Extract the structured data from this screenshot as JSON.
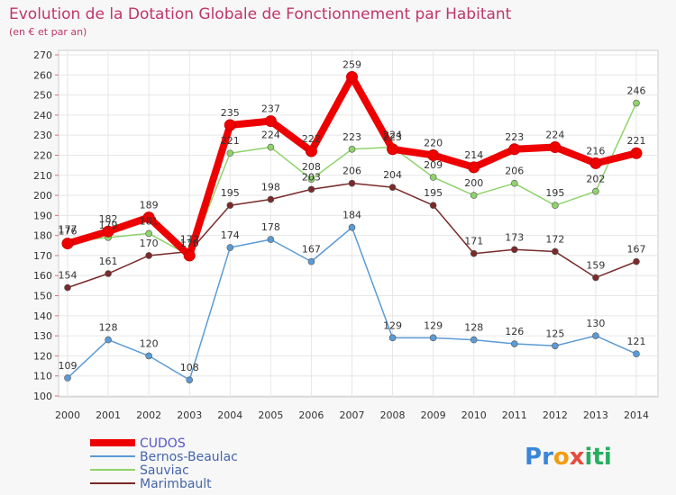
{
  "chart_data": {
    "type": "line",
    "title": "Evolution de la Dotation Globale de Fonctionnement par Habitant",
    "subtitle": "(en € et par an)",
    "xlabel": "",
    "ylabel": "",
    "ylim": [
      100,
      270
    ],
    "ytick_step": 10,
    "grid": true,
    "legend_position": "bottom-left",
    "x": [
      "2000",
      "2001",
      "2002",
      "2003",
      "2004",
      "2005",
      "2006",
      "2007",
      "2008",
      "2009",
      "2010",
      "2011",
      "2012",
      "2013",
      "2014"
    ],
    "series": [
      {
        "name": "CUDOS",
        "color": "#ee0000",
        "values": [
          176,
          182,
          189,
          170,
          235,
          237,
          222,
          259,
          223,
          220,
          214,
          223,
          224,
          216,
          221
        ]
      },
      {
        "name": "Bernos-Beaulac",
        "color": "#5b9bd5",
        "values": [
          109,
          128,
          120,
          108,
          174,
          178,
          167,
          184,
          129,
          129,
          128,
          126,
          125,
          130,
          121
        ]
      },
      {
        "name": "Sauviac",
        "color": "#8fd36b",
        "values": [
          177,
          179,
          181,
          170,
          221,
          224,
          208,
          223,
          224,
          209,
          200,
          206,
          195,
          202,
          246
        ]
      },
      {
        "name": "Marimbault",
        "color": "#7a2a2a",
        "values": [
          154,
          161,
          170,
          172,
          195,
          198,
          203,
          206,
          204,
          195,
          171,
          173,
          172,
          159,
          167
        ]
      }
    ],
    "brand": {
      "logo_text": "Proxiti",
      "letters": [
        {
          "ch": "P",
          "color": "#3a86d9"
        },
        {
          "ch": "r",
          "color": "#3a86d9"
        },
        {
          "ch": "o",
          "color": "#f39c12"
        },
        {
          "ch": "x",
          "color": "#e74c3c"
        },
        {
          "ch": "i",
          "color": "#27ae60"
        },
        {
          "ch": "t",
          "color": "#27ae60"
        },
        {
          "ch": "i",
          "color": "#27ae60"
        }
      ]
    }
  }
}
